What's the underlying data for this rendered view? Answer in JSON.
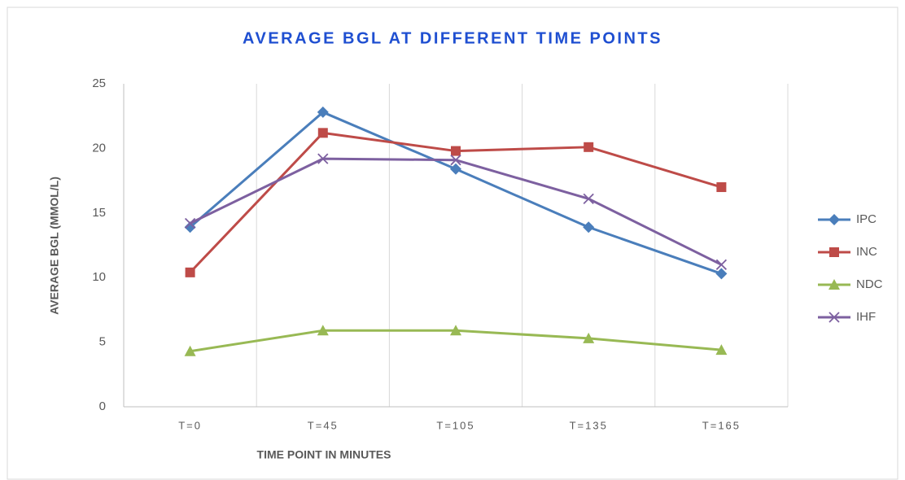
{
  "chart_data": {
    "type": "line",
    "title": "AVERAGE BGL AT DIFFERENT TIME POINTS",
    "x_label": "TIME POINT IN MINUTES",
    "y_label": "AVERAGE BGL (MMOL/L)",
    "categories": [
      "T=0",
      "T=45",
      "T=105",
      "T=135",
      "T=165"
    ],
    "series": [
      {
        "name": "IPC",
        "color": "#4a7ebb",
        "marker": "diamond",
        "values": [
          13.9,
          22.8,
          18.4,
          13.9,
          10.3
        ]
      },
      {
        "name": "INC",
        "color": "#be4b48",
        "marker": "square",
        "values": [
          10.4,
          21.2,
          19.8,
          20.1,
          17.0
        ]
      },
      {
        "name": "NDC",
        "color": "#98b954",
        "marker": "triangle",
        "values": [
          4.3,
          5.9,
          5.9,
          5.3,
          4.4
        ]
      },
      {
        "name": "IHF",
        "color": "#7d60a0",
        "marker": "x",
        "values": [
          14.2,
          19.2,
          19.1,
          16.1,
          11.0
        ]
      }
    ],
    "ylim": [
      0,
      25
    ],
    "yticks": [
      0,
      5,
      10,
      15,
      20,
      25
    ],
    "grid": "vertical",
    "legend": "right"
  }
}
